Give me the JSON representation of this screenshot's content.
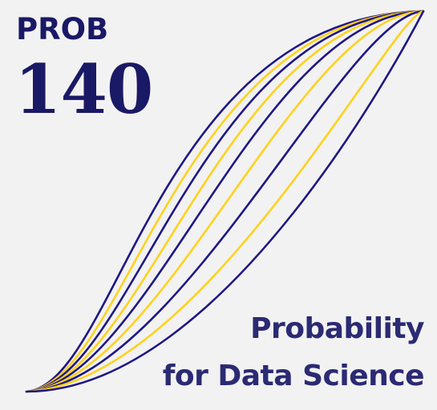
{
  "logo": {
    "course_code": "PROB",
    "course_number": "140",
    "tagline_line1": "Probability",
    "tagline_line2": "for Data Science"
  },
  "colors": {
    "background": "#f2f2f2",
    "navy": "#1f1785",
    "gold": "#ffd21c",
    "text": "#1a1966"
  },
  "curves": {
    "count": 9,
    "color_pattern": [
      "navy",
      "gold",
      "navy",
      "gold",
      "navy",
      "gold",
      "navy",
      "gold",
      "navy"
    ]
  }
}
